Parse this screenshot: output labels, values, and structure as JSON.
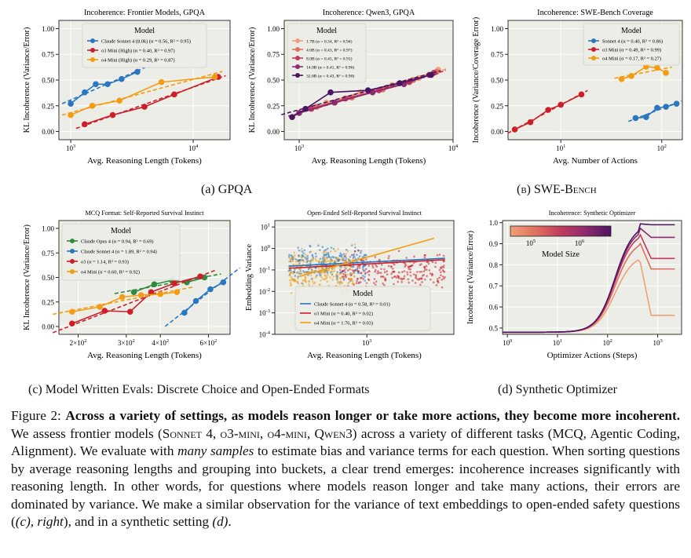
{
  "subcaptions": {
    "a": "(a) GPQA",
    "b": "(b) SWE-Bench",
    "c": "(c) Model Written Evals: Discrete Choice and Open-Ended Formats",
    "d": "(d) Synthetic Optimizer"
  },
  "caption": {
    "label": "Figure 2:",
    "bold": "Across a variety of settings, as models reason longer or take more actions, they become more incoherent.",
    "p1": "We assess frontier models (",
    "models": "Sonnet 4, o3-mini, o4-mini, Qwen3",
    "p2": ") across a variety of different tasks (MCQ, Agentic Coding, Alignment). We evaluate with",
    "em1": "many samples",
    "p3": "to estimate bias and variance terms for each question. When sorting questions by average reasoning lengths and grouping into buckets, a clear trend emerges: incoherence increases significantly with reasoning length. In other words, for questions where models reason longer and take many actions, their errors are dominated by variance. We make a similar observation for the variance of text embeddings to open-ended safety questions (",
    "em2": "(c), right",
    "p4": "), and in a synthetic setting",
    "em3": "(d)",
    "p5": "."
  },
  "colors": {
    "sonnet": "#2a76c0",
    "o3": "#cc1f2a",
    "o4": "#f39c12",
    "opus": "#2e8b3d",
    "panel_bg": "#ebede6",
    "grid": "#ffffff"
  },
  "chart_data": [
    {
      "type": "line",
      "title": "Incoherence: Frontier Models, GPQA",
      "xlabel": "Avg. Reasoning Length (Tokens)",
      "ylabel": "KL Incoherence (Variance/Error)",
      "xscale": "log",
      "xlim": [
        800,
        20000
      ],
      "ylim": [
        -0.08,
        1.08
      ],
      "xticks": [
        1000,
        10000
      ],
      "xtick_labels": [
        "10^3",
        "10^4"
      ],
      "yticks": [
        0.0,
        0.25,
        0.5,
        0.75,
        1.0
      ],
      "ytick_labels": [
        "0.00",
        "0.25",
        "0.50",
        "0.75",
        "1.00"
      ],
      "legend_title": "Model",
      "legend_position": "top-center",
      "series": [
        {
          "name": "Claude Sonnet 4 (8.0k) (α = 0.56, R² = 0.95)",
          "color": "sonnet",
          "x": [
            1000,
            1300,
            1600,
            2000,
            2600,
            3500
          ],
          "y": [
            0.27,
            0.38,
            0.46,
            0.46,
            0.51,
            0.58
          ]
        },
        {
          "name": "o3 Mini (High) (α = 0.40, R² = 0.97)",
          "color": "o3",
          "x": [
            1300,
            2200,
            4000,
            7000,
            16000
          ],
          "y": [
            0.07,
            0.16,
            0.24,
            0.36,
            0.53
          ]
        },
        {
          "name": "o4 Mini (High) (α = 0.29, R² = 0.87)",
          "color": "o4",
          "x": [
            1000,
            1500,
            2500,
            5500,
            15000
          ],
          "y": [
            0.16,
            0.25,
            0.3,
            0.48,
            0.53
          ]
        }
      ]
    },
    {
      "type": "line",
      "title": "Incoherence: Qwen3, GPQA",
      "xlabel": "Avg. Reasoning Length (Tokens)",
      "ylabel": "KL Incoherence (Variance/Error)",
      "xscale": "log",
      "xlim": [
        800,
        10000
      ],
      "ylim": [
        -0.08,
        1.08
      ],
      "xticks": [
        1000,
        10000
      ],
      "xtick_labels": [
        "10^3",
        "10^4"
      ],
      "yticks": [
        0.0,
        0.25,
        0.5,
        0.75,
        1.0
      ],
      "ytick_labels": [
        "0.00",
        "0.25",
        "0.50",
        "0.75",
        "1.00"
      ],
      "legend_title": "Model",
      "legend_position": "top-left",
      "series": [
        {
          "name": "1.7B (α = 0.34, R² = 0.94)",
          "color": "#f0a07a",
          "x": [
            1500,
            2500,
            4000,
            6000,
            8000
          ],
          "y": [
            0.28,
            0.38,
            0.45,
            0.52,
            0.6
          ]
        },
        {
          "name": "4.0B (α = 0.43, R² = 0.97)",
          "color": "#e0705e",
          "x": [
            1300,
            2200,
            3500,
            5500,
            7800
          ],
          "y": [
            0.24,
            0.33,
            0.41,
            0.5,
            0.58
          ]
        },
        {
          "name": "8.0B (α = 0.45, R² = 0.91)",
          "color": "#c23b5e",
          "x": [
            1200,
            2000,
            3300,
            5200,
            7500
          ],
          "y": [
            0.22,
            0.32,
            0.4,
            0.48,
            0.57
          ]
        },
        {
          "name": "14.0B (α = 0.41, R² = 0.96)",
          "color": "#8e2a6e",
          "x": [
            1000,
            1700,
            3000,
            4800,
            7000
          ],
          "y": [
            0.18,
            0.28,
            0.38,
            0.46,
            0.55
          ]
        },
        {
          "name": "32.0B (α = 0.43, R² = 0.90)",
          "color": "#4a1560",
          "x": [
            900,
            1100,
            1600,
            2800,
            4500,
            7200
          ],
          "y": [
            0.14,
            0.22,
            0.38,
            0.4,
            0.47,
            0.55
          ]
        }
      ]
    },
    {
      "type": "line",
      "title": "Incoherence: SWE-Bench Coverage",
      "xlabel": "Avg. Number of Actions",
      "ylabel": "Incoherence (Variance/Coverage Error)",
      "xscale": "log",
      "xlim": [
        3,
        160
      ],
      "ylim": [
        -0.08,
        1.08
      ],
      "xticks": [
        10,
        100
      ],
      "xtick_labels": [
        "10^1",
        "10^2"
      ],
      "yticks": [
        0.0,
        0.25,
        0.5,
        0.75,
        1.0
      ],
      "ytick_labels": [
        "0.00",
        "0.25",
        "0.50",
        "0.75",
        "1.00"
      ],
      "legend_title": "Model",
      "legend_position": "top-right",
      "series": [
        {
          "name": "Sonnet 4 (α = 0.40, R² = 0.86)",
          "color": "sonnet",
          "x": [
            55,
            70,
            90,
            110,
            140
          ],
          "y": [
            0.13,
            0.14,
            0.23,
            0.24,
            0.27
          ]
        },
        {
          "name": "o3 Mini (α = 0.49, R² = 0.99)",
          "color": "o3",
          "x": [
            3.5,
            5,
            7.5,
            10,
            16
          ],
          "y": [
            0.02,
            0.09,
            0.21,
            0.26,
            0.36
          ]
        },
        {
          "name": "o4 Mini (α = 0.17, R² = 0.27)",
          "color": "o4",
          "x": [
            40,
            50,
            70,
            90,
            110
          ],
          "y": [
            0.51,
            0.54,
            0.63,
            0.62,
            0.57
          ]
        }
      ]
    },
    {
      "type": "line",
      "title": "MCQ Format: Self-Reported Survival Instinct",
      "xlabel": "Avg. Reasoning Length (Tokens)",
      "ylabel": "KL Incoherence (Variance/Error)",
      "xscale": "log",
      "xlim": [
        170,
        720
      ],
      "ylim": [
        -0.08,
        1.08
      ],
      "xticks": [
        200,
        300,
        400,
        600
      ],
      "xtick_labels": [
        "2×10^2",
        "3×10^2",
        "4×10^2",
        "6×10^2"
      ],
      "yticks": [
        0.0,
        0.25,
        0.5,
        0.75,
        1.0
      ],
      "ytick_labels": [
        "0.00",
        "0.25",
        "0.50",
        "0.75",
        "1.00"
      ],
      "legend_title": "Model",
      "legend_position": "top-left",
      "series": [
        {
          "name": "Claude Opus 4 (α = 0.94, R² = 0.69)",
          "color": "opus",
          "x": [
            320,
            380,
            440,
            500,
            580
          ],
          "y": [
            0.35,
            0.43,
            0.47,
            0.45,
            0.5
          ]
        },
        {
          "name": "Claude Sonnet 4 (α = 1.89, R² = 0.94)",
          "color": "sonnet",
          "x": [
            490,
            540,
            610,
            680
          ],
          "y": [
            0.14,
            0.26,
            0.38,
            0.45
          ]
        },
        {
          "name": "o3 (α = 1.14, R² = 0.93)",
          "color": "o3",
          "x": [
            190,
            250,
            310,
            370,
            450,
            560
          ],
          "y": [
            0.03,
            0.16,
            0.15,
            0.35,
            0.44,
            0.51
          ]
        },
        {
          "name": "o4 Mini (α = 0.60, R² = 0.92)",
          "color": "o4",
          "x": [
            190,
            240,
            290,
            340,
            400,
            460
          ],
          "y": [
            0.15,
            0.2,
            0.3,
            0.32,
            0.33,
            0.35
          ]
        }
      ]
    },
    {
      "type": "scatter",
      "title": "Open-Ended Self-Reported Survival Instinct",
      "xlabel": "Avg. Reasoning Length (Tokens)",
      "ylabel": "Embedding Variance",
      "xscale": "log",
      "yscale": "log",
      "xlim": [
        150,
        6000
      ],
      "ylim": [
        0.0001,
        20
      ],
      "xticks": [
        1000
      ],
      "xtick_labels": [
        "10^3"
      ],
      "yticks": [
        0.0001,
        0.001,
        0.01,
        0.1,
        1,
        10
      ],
      "ytick_labels": [
        "10^-4",
        "10^-3",
        "10^-2",
        "10^-1",
        "10^0",
        "10^1"
      ],
      "legend_title": "Model",
      "legend_position": "bottom-center",
      "series": [
        {
          "name": "Claude Sonnet 4 (α = 0.58, R² = 0.01)",
          "color": "sonnet",
          "x_range": [
            200,
            1000
          ],
          "y_range": [
            0.05,
            1.0
          ],
          "fit": [
            [
              200,
              0.15
            ],
            [
              5000,
              0.35
            ]
          ]
        },
        {
          "name": "o3 Mini (α = 0.40, R² = 0.02)",
          "color": "o3",
          "x_range": [
            600,
            5000
          ],
          "y_range": [
            0.02,
            0.5
          ],
          "fit": [
            [
              200,
              0.12
            ],
            [
              5000,
              0.3
            ]
          ]
        },
        {
          "name": "o4 Mini (α = 1.76, R² = 0.03)",
          "color": "o4",
          "x_range": [
            200,
            800
          ],
          "y_range": [
            0.01,
            0.6
          ],
          "fit": [
            [
              250,
              0.05
            ],
            [
              4000,
              3.0
            ]
          ]
        }
      ]
    },
    {
      "type": "line",
      "title": "Incoherence: Synthetic Optimizer",
      "xlabel": "Optimizer Actions (Steps)",
      "ylabel": "Incoherence (Variance/Error)",
      "xscale": "log",
      "xlim": [
        0.8,
        3000
      ],
      "ylim": [
        0.47,
        1.01
      ],
      "xticks": [
        1,
        10,
        100,
        1000
      ],
      "xtick_labels": [
        "10^0",
        "10^1",
        "10^2",
        "10^3"
      ],
      "yticks": [
        0.5,
        0.6,
        0.7,
        0.8,
        0.9,
        1.0
      ],
      "ytick_labels": [
        "0.5",
        "0.6",
        "0.7",
        "0.8",
        "0.9",
        "1.0"
      ],
      "colorbar": {
        "label": "Model Size",
        "ticks": [
          "10^5",
          "10^6"
        ],
        "position": "top-left"
      },
      "series": [
        {
          "color": "#f0a07a",
          "peak": 0.85,
          "final": 0.56
        },
        {
          "color": "#e0705e",
          "peak": 0.92,
          "final": 0.78
        },
        {
          "color": "#c23b5e",
          "peak": 0.96,
          "final": 0.83
        },
        {
          "color": "#8e2a6e",
          "peak": 0.98,
          "final": 0.93
        },
        {
          "color": "#4a1560",
          "peak": 0.995,
          "final": 0.99
        }
      ]
    }
  ]
}
